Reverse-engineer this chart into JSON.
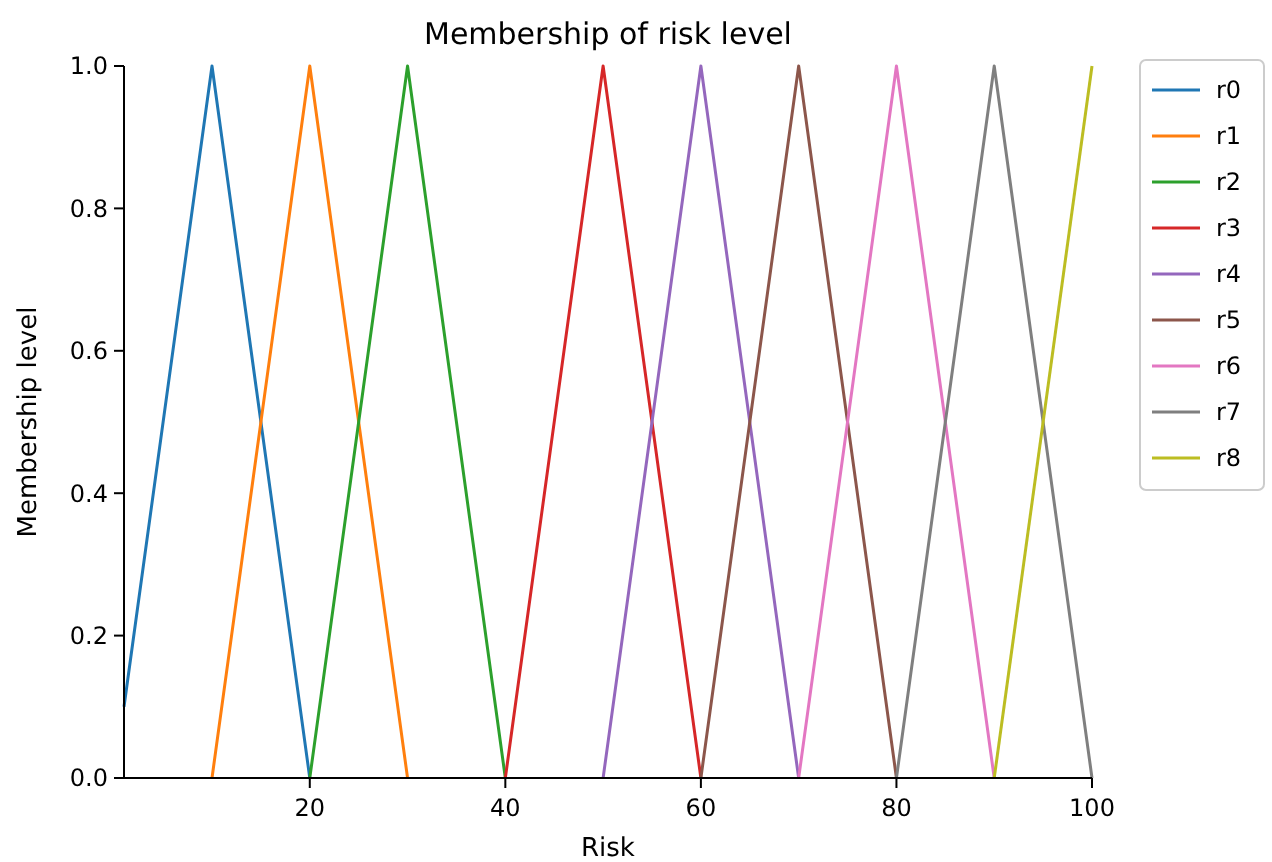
{
  "chart_data": {
    "type": "line",
    "title": "Membership of risk level",
    "xlabel": "Risk",
    "ylabel": "Membership level",
    "xlim": [
      1,
      100
    ],
    "xticks": [
      20,
      40,
      60,
      80,
      100
    ],
    "ylim": [
      0,
      1
    ],
    "yticks": [
      {
        "value": 0,
        "label": "0.0"
      },
      {
        "value": 0.2,
        "label": "0.2"
      },
      {
        "value": 0.4,
        "label": "0.4"
      },
      {
        "value": 0.6,
        "label": "0.6"
      },
      {
        "value": 0.8,
        "label": "0.8"
      },
      {
        "value": 1,
        "label": "1.0"
      }
    ],
    "grid": false,
    "legend": "top right",
    "marker": "none",
    "line_style": "solid",
    "series": [
      {
        "name": "r0",
        "color": "#1f77b4",
        "x": [
          1,
          10,
          20
        ],
        "values": [
          0.1,
          1,
          0
        ]
      },
      {
        "name": "r1",
        "color": "#ff7f0e",
        "x": [
          10,
          20,
          30
        ],
        "values": [
          0,
          1,
          0
        ]
      },
      {
        "name": "r2",
        "color": "#2ca02c",
        "x": [
          20,
          30,
          40
        ],
        "values": [
          0,
          1,
          0
        ]
      },
      {
        "name": "r3",
        "color": "#d62728",
        "x": [
          40,
          50,
          60
        ],
        "values": [
          0,
          1,
          0
        ]
      },
      {
        "name": "r4",
        "color": "#9467bd",
        "x": [
          50,
          60,
          70
        ],
        "values": [
          0,
          1,
          0
        ]
      },
      {
        "name": "r5",
        "color": "#8c564b",
        "x": [
          60,
          70,
          80
        ],
        "values": [
          0,
          1,
          0
        ]
      },
      {
        "name": "r6",
        "color": "#e377c2",
        "x": [
          70,
          80,
          90
        ],
        "values": [
          0,
          1,
          0
        ]
      },
      {
        "name": "r7",
        "color": "#7f7f7f",
        "x": [
          80,
          90,
          100
        ],
        "values": [
          0,
          1,
          0
        ]
      },
      {
        "name": "r8",
        "color": "#bcbd22",
        "x": [
          90,
          100
        ],
        "values": [
          0,
          1
        ]
      }
    ]
  }
}
